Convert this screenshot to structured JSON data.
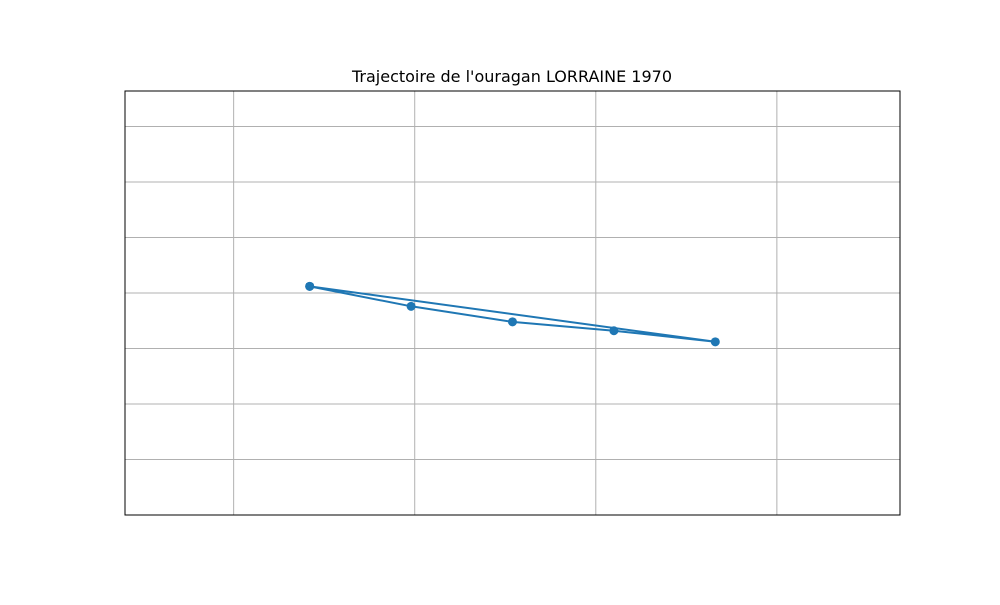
{
  "chart_data": {
    "type": "line",
    "title": "Trajectoire de l'ouragan LORRAINE 1970",
    "xlabel": "",
    "ylabel": "",
    "grid": true,
    "xlim": [
      -102.2,
      -80.8
    ],
    "ylim": [
      6.0,
      25.1
    ],
    "x_gridlines": [
      -99.2,
      -94.2,
      -89.2,
      -84.2
    ],
    "y_gridlines": [
      8.5,
      11.0,
      13.5,
      16.0,
      18.5,
      21.0,
      23.5
    ],
    "series": [
      {
        "color": "#1f77b4",
        "marker": "circle",
        "x": [
          -97.1,
          -94.3,
          -91.5,
          -88.7,
          -85.9,
          -97.1
        ],
        "y": [
          16.3,
          15.4,
          14.7,
          14.3,
          13.8,
          16.3
        ]
      }
    ]
  }
}
